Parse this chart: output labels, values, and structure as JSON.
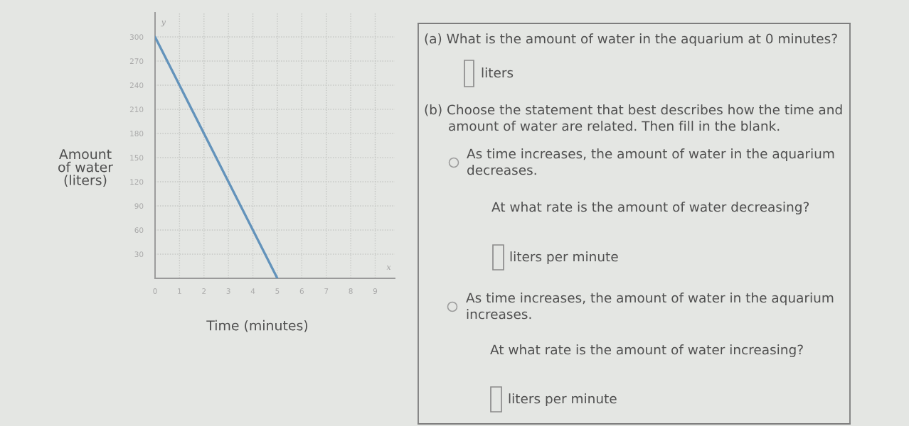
{
  "chart_data": [
    {
      "type": "line",
      "xlabel": "Time (minutes)",
      "ylabel": "Amount\nof water\n(liters)",
      "x": [
        0,
        5
      ],
      "values": [
        300,
        0
      ],
      "color": "#6393bb",
      "xlim": [
        0,
        9.8
      ],
      "ylim": [
        0,
        330
      ],
      "xticks": [
        0,
        1,
        2,
        3,
        4,
        5,
        6,
        7,
        8,
        9
      ],
      "yticks": [
        30,
        60,
        90,
        120,
        150,
        180,
        210,
        240,
        270,
        300
      ],
      "grid": true,
      "annotations": [
        "y",
        "x"
      ]
    },
    {
      "type": "other",
      "annotations": [
        "(a) What is the amount of water in the aquarium at 0 minutes?",
        "liters",
        "(b) Choose the statement that best describes how the time and\namount of water are related. Then fill in the blank.",
        "As time increases, the amount of water in the aquarium\ndecreases.",
        "At what rate is the amount of water decreasing?",
        "liters per minute",
        "As time increases, the amount of water in the aquarium\nincreases.",
        "At what rate is the amount of water increasing?",
        "liters per minute"
      ]
    }
  ]
}
